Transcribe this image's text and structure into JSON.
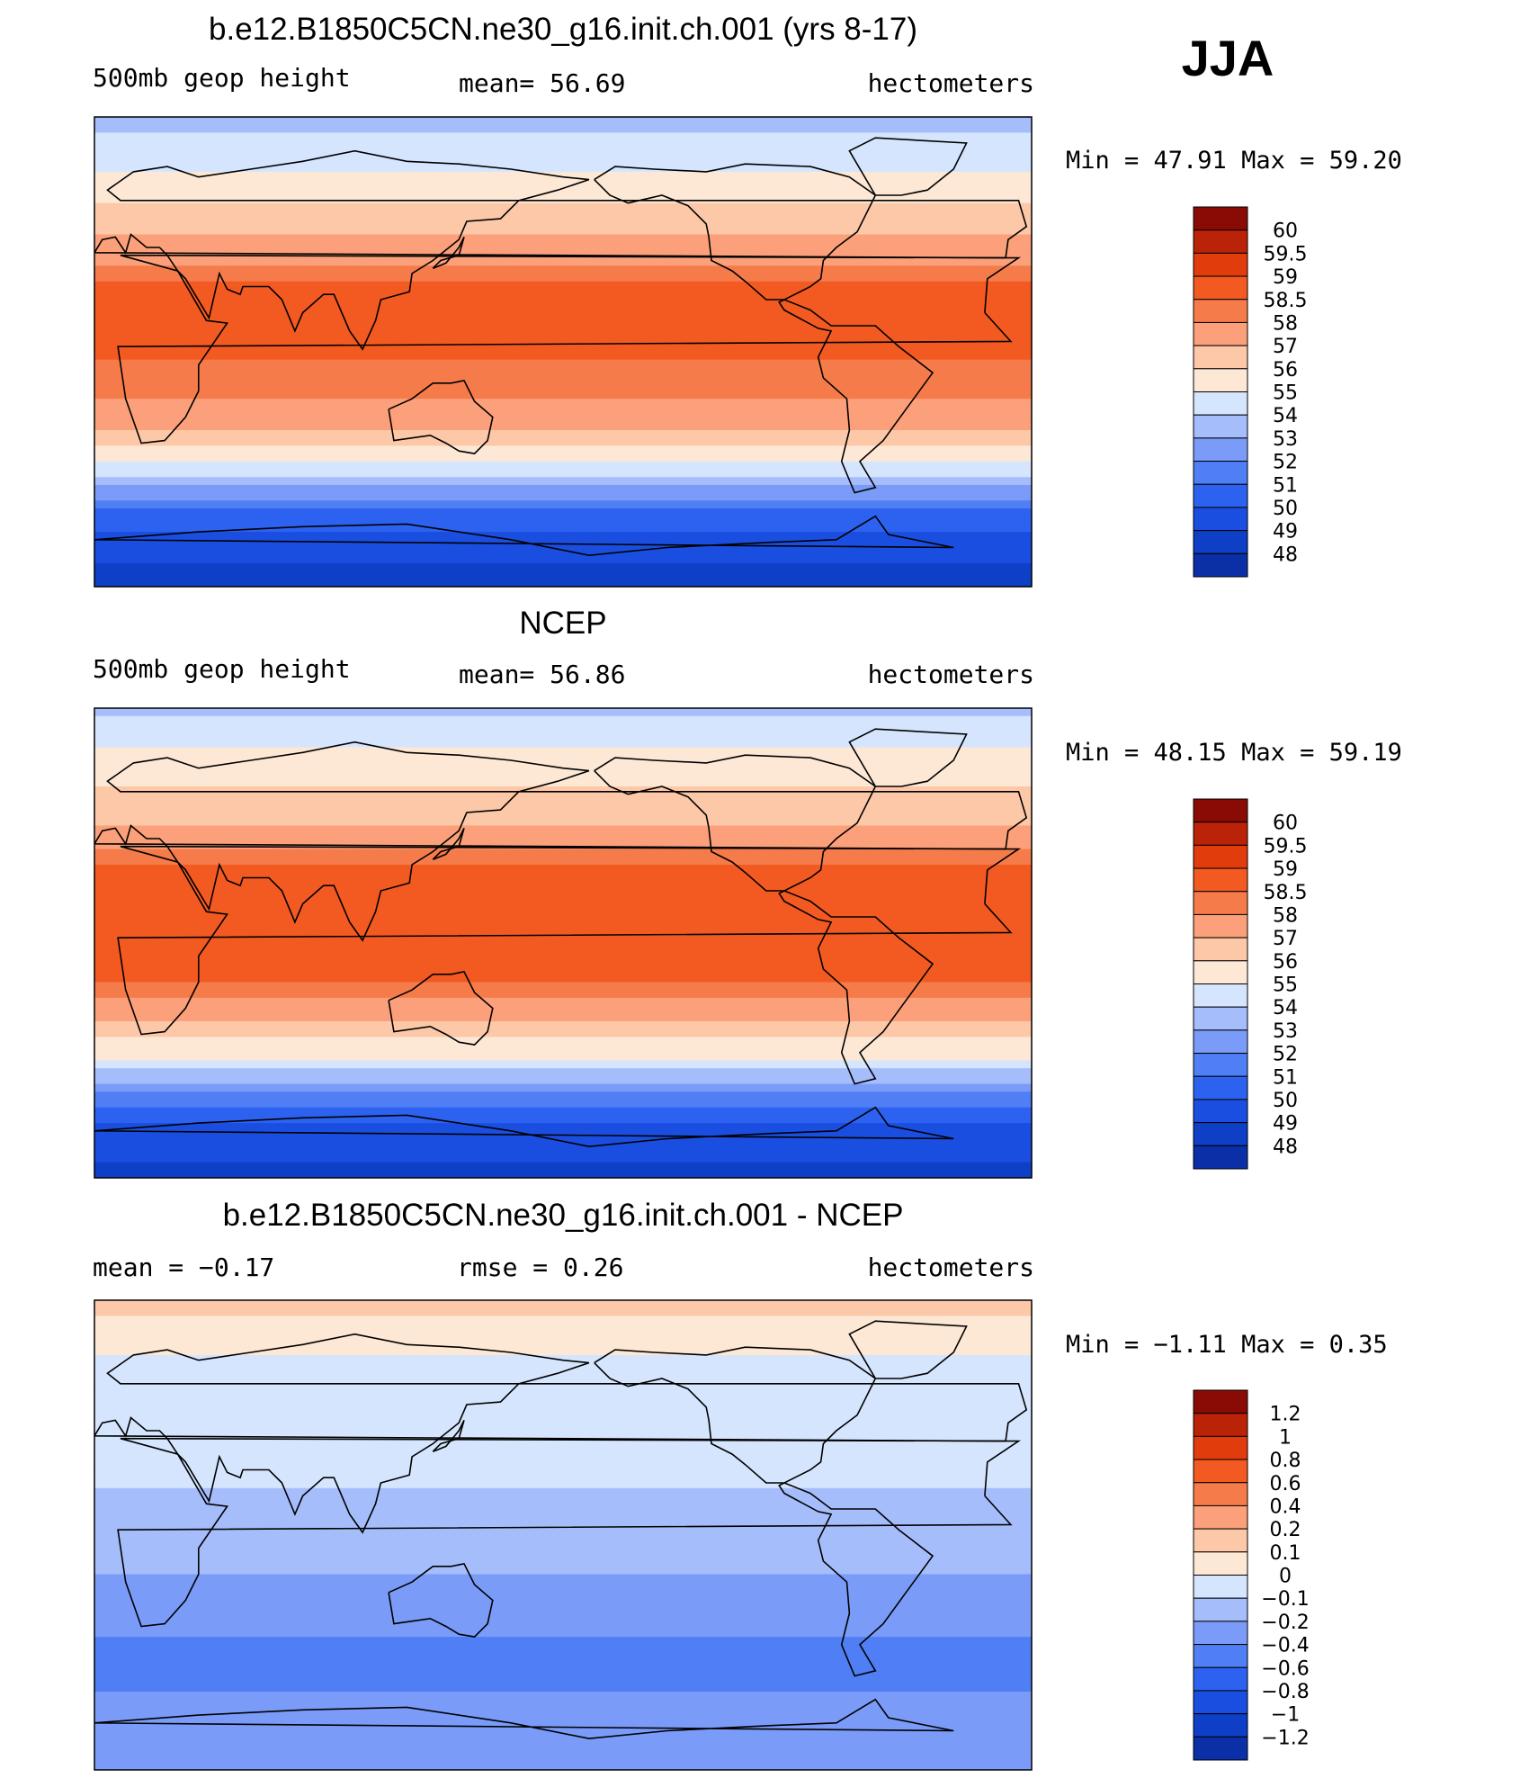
{
  "season": "JJA",
  "colors": {
    "height_levels": [
      "#0a0a7e",
      "#0a2fa6",
      "#0d3fc7",
      "#1a4ee0",
      "#2d62f0",
      "#4f7ef5",
      "#7a9cf8",
      "#a6bdfb",
      "#d5e5fe",
      "#fde8d6",
      "#fcc8a8",
      "#fba07a",
      "#f57c4a",
      "#f25a22",
      "#e13d0c",
      "#bb2308",
      "#8a0b05"
    ],
    "diff_levels": [
      "#0a0a7e",
      "#0a2fa6",
      "#0d3fc7",
      "#1a4ee0",
      "#2d62f0",
      "#4f7ef5",
      "#7a9cf8",
      "#a6bdfb",
      "#d5e5fe",
      "#fde8d6",
      "#fcc8a8",
      "#fba07a",
      "#f57c4a",
      "#f25a22",
      "#e13d0c",
      "#bb2308",
      "#8a0b05"
    ],
    "coast": "#000000"
  },
  "chart_data": [
    {
      "type": "heatmap",
      "title": "b.e12.B1850C5CN.ne30_g16.init.ch.001 (yrs 8-17)",
      "variable": "500mb geop height",
      "stat": "mean=   56.69",
      "units": "hectometers",
      "minmax": "Min =   47.91 Max =   59.20",
      "min": 47.91,
      "max": 59.2,
      "mean": 56.69,
      "levels": [
        "48",
        "49",
        "50",
        "51",
        "52",
        "53",
        "54",
        "55",
        "56",
        "57",
        "58",
        "58.5",
        "59",
        "59.5",
        "60"
      ],
      "lat_profile": {
        "lat": [
          90,
          75,
          60,
          45,
          30,
          15,
          0,
          -15,
          -30,
          -45,
          -60,
          -75,
          -90
        ],
        "value": [
          53.6,
          54.6,
          55.8,
          56.9,
          58.4,
          58.8,
          58.6,
          58.2,
          57.0,
          54.6,
          51.2,
          49.2,
          48.6
        ]
      }
    },
    {
      "type": "heatmap",
      "title": "NCEP",
      "variable": "500mb geop height",
      "stat": "mean=   56.86",
      "units": "hectometers",
      "minmax": "Min =   48.15 Max =   59.19",
      "min": 48.15,
      "max": 59.19,
      "mean": 56.86,
      "levels": [
        "48",
        "49",
        "50",
        "51",
        "52",
        "53",
        "54",
        "55",
        "56",
        "57",
        "58",
        "58.5",
        "59",
        "59.5",
        "60"
      ],
      "lat_profile": {
        "lat": [
          90,
          75,
          60,
          45,
          30,
          15,
          0,
          -15,
          -30,
          -45,
          -60,
          -75,
          -90
        ],
        "value": [
          53.8,
          54.9,
          56.1,
          57.1,
          58.6,
          58.9,
          58.8,
          58.5,
          57.2,
          54.8,
          51.4,
          49.4,
          48.8
        ]
      }
    },
    {
      "type": "heatmap",
      "title": "b.e12.B1850C5CN.ne30_g16.init.ch.001 - NCEP",
      "stat_left": "mean =   −0.17",
      "stat_mid": "rmse =    0.26",
      "units": "hectometers",
      "minmax": "Min =  −1.11 Max =    0.35",
      "min": -1.11,
      "max": 0.35,
      "mean": -0.17,
      "rmse": 0.26,
      "levels": [
        "−1.2",
        "−1",
        "−0.8",
        "−0.6",
        "−0.4",
        "−0.2",
        "−0.1",
        "0",
        "0.1",
        "0.2",
        "0.4",
        "0.6",
        "0.8",
        "1",
        "1.2"
      ],
      "lat_profile": {
        "lat": [
          90,
          75,
          60,
          45,
          30,
          15,
          0,
          -15,
          -30,
          -45,
          -60,
          -75,
          -90
        ],
        "value": [
          0.15,
          0.05,
          -0.1,
          -0.05,
          -0.05,
          -0.12,
          -0.15,
          -0.2,
          -0.3,
          -0.45,
          -0.4,
          -0.25,
          -0.2
        ]
      }
    }
  ]
}
